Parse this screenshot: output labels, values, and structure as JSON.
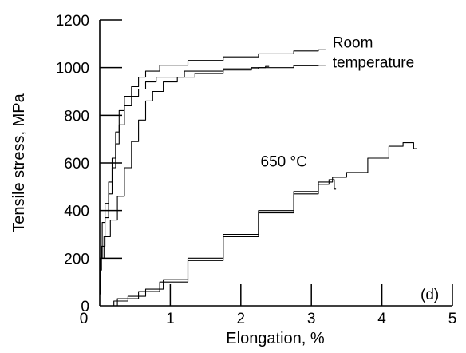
{
  "chart_data": {
    "type": "line",
    "panel_label": "(d)",
    "xlabel": "Elongation, %",
    "ylabel": "Tensile stress, MPa",
    "xlim": [
      0,
      5
    ],
    "ylim": [
      0,
      1200
    ],
    "x_ticks": [
      "0",
      "1",
      "2",
      "3",
      "4",
      "5"
    ],
    "y_ticks": [
      "0",
      "200",
      "400",
      "600",
      "800",
      "1000",
      "1200"
    ],
    "annotations": [
      {
        "text": "Room",
        "x": 3.3,
        "y": 1085
      },
      {
        "text": "temperature",
        "x": 3.3,
        "y": 1000
      },
      {
        "text": "650 °C",
        "x": 2.28,
        "y": 585
      }
    ],
    "series": [
      {
        "values": [
          [
            0,
            50
          ],
          [
            0.02,
            200
          ],
          [
            0.05,
            350
          ],
          [
            0.1,
            430
          ],
          [
            0.15,
            520
          ],
          [
            0.2,
            620
          ],
          [
            0.25,
            730
          ],
          [
            0.3,
            820
          ],
          [
            0.4,
            880
          ],
          [
            0.5,
            920
          ],
          [
            0.6,
            960
          ],
          [
            0.7,
            985
          ],
          [
            1.0,
            1010
          ],
          [
            1.5,
            1030
          ],
          [
            2.0,
            1045
          ],
          [
            2.5,
            1058
          ],
          [
            3.0,
            1070
          ],
          [
            3.2,
            1075
          ]
        ]
      },
      {
        "values": [
          [
            0,
            150
          ],
          [
            0.05,
            250
          ],
          [
            0.1,
            370
          ],
          [
            0.15,
            470
          ],
          [
            0.2,
            580
          ],
          [
            0.25,
            680
          ],
          [
            0.3,
            760
          ],
          [
            0.4,
            840
          ],
          [
            0.5,
            880
          ],
          [
            0.6,
            910
          ],
          [
            0.7,
            940
          ],
          [
            0.9,
            960
          ],
          [
            1.5,
            985
          ],
          [
            2.0,
            995
          ],
          [
            2.5,
            1000
          ],
          [
            3.0,
            1008
          ],
          [
            3.2,
            1010
          ]
        ]
      },
      {
        "values": [
          [
            0.02,
            200
          ],
          [
            0.1,
            290
          ],
          [
            0.2,
            360
          ],
          [
            0.3,
            460
          ],
          [
            0.4,
            580
          ],
          [
            0.5,
            690
          ],
          [
            0.6,
            780
          ],
          [
            0.7,
            860
          ],
          [
            0.8,
            900
          ],
          [
            1.0,
            940
          ],
          [
            1.2,
            960
          ],
          [
            1.5,
            975
          ],
          [
            2.0,
            990
          ],
          [
            2.3,
            1000
          ],
          [
            2.4,
            1005
          ]
        ]
      },
      {
        "values": [
          [
            0.1,
            0
          ],
          [
            0.3,
            20
          ],
          [
            0.5,
            40
          ],
          [
            0.8,
            70
          ],
          [
            1.0,
            110
          ],
          [
            1.5,
            200
          ],
          [
            2.0,
            300
          ],
          [
            2.5,
            400
          ],
          [
            3.0,
            480
          ],
          [
            3.2,
            520
          ],
          [
            3.4,
            540
          ],
          [
            3.6,
            560
          ],
          [
            4.0,
            620
          ],
          [
            4.2,
            670
          ],
          [
            4.4,
            685
          ],
          [
            4.5,
            660
          ]
        ]
      },
      {
        "values": [
          [
            0.1,
            0
          ],
          [
            0.4,
            30
          ],
          [
            0.7,
            60
          ],
          [
            1.0,
            100
          ],
          [
            1.5,
            190
          ],
          [
            2.0,
            290
          ],
          [
            2.5,
            390
          ],
          [
            3.0,
            470
          ],
          [
            3.2,
            510
          ],
          [
            3.3,
            530
          ],
          [
            3.35,
            490
          ]
        ]
      }
    ]
  }
}
